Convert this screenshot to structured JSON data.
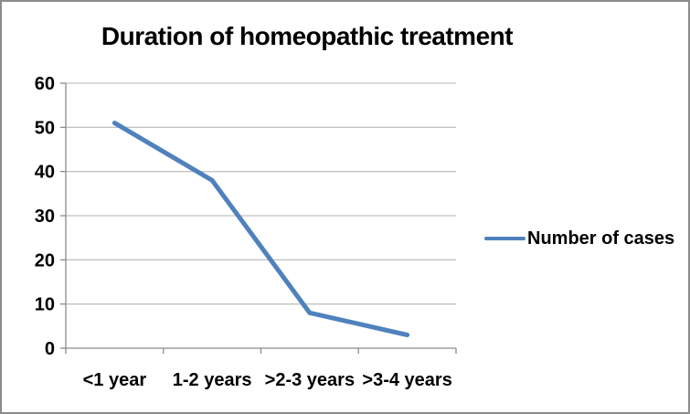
{
  "window": {
    "background_color": "#ffffff",
    "border_color": "#8c8c8c"
  },
  "chart_data": {
    "type": "line",
    "title": "Duration of homeopathic treatment",
    "categories": [
      "<1 year",
      "1-2 years",
      ">2-3 years",
      ">3-4 years"
    ],
    "series": [
      {
        "name": "Number of cases",
        "values": [
          51,
          38,
          8,
          3
        ],
        "color": "#4f81bd"
      }
    ],
    "xlabel": "",
    "ylabel": "",
    "ylim": [
      0,
      60
    ],
    "yticks": [
      0,
      10,
      20,
      30,
      40,
      50,
      60
    ],
    "grid": true,
    "legend_position": "right",
    "gridline_color": "#c3c3c3",
    "axis_color": "#8c8c8c",
    "tick_label_color": "#000000"
  },
  "legend": {
    "label": "Number of cases",
    "line_color": "#4f81bd"
  }
}
